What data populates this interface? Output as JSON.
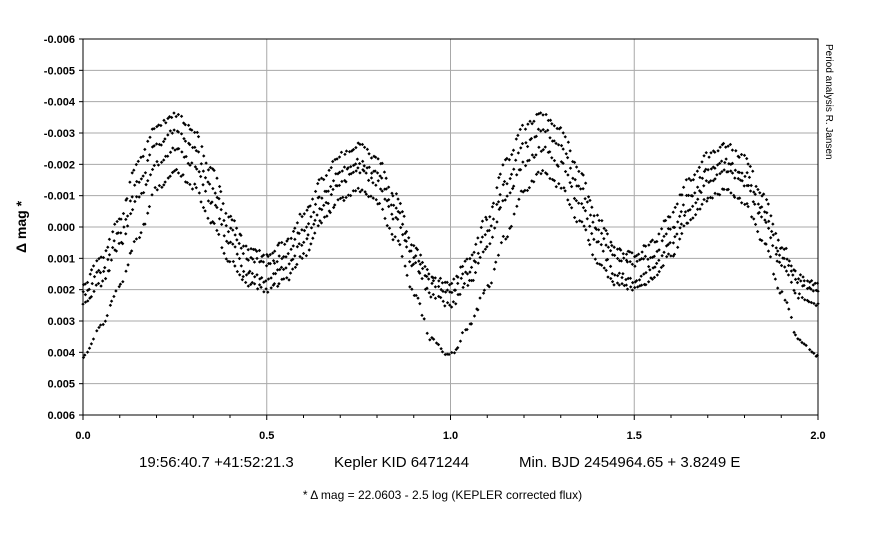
{
  "chart_data": {
    "type": "scatter",
    "title": "",
    "ylabel": "Δ mag *",
    "xlabel": "",
    "xlim": [
      0.0,
      2.0
    ],
    "ylim": [
      -0.006,
      0.006
    ],
    "y_inverted": true,
    "grid": true,
    "legend": "none",
    "x_ticks": [
      "0.0",
      "0.5",
      "1.0",
      "1.5",
      "2.0"
    ],
    "x_tick_values": [
      0.0,
      0.5,
      1.0,
      1.5,
      2.0
    ],
    "y_ticks": [
      "-0.006",
      "-0.005",
      "-0.004",
      "-0.003",
      "-0.002",
      "-0.001",
      "0.000",
      "0.001",
      "0.002",
      "0.003",
      "0.004",
      "0.005",
      "0.006"
    ],
    "y_tick_values": [
      -0.006,
      -0.005,
      -0.004,
      -0.003,
      -0.002,
      -0.001,
      0.0,
      0.001,
      0.002,
      0.003,
      0.004,
      0.005,
      0.006
    ],
    "side_note": "Period analysis  R. Jansen",
    "caption_coords": "19:56:40.7 +41:52:21.3",
    "caption_id": "Kepler KID 6471244",
    "caption_ephemeris": "Min. BJD 2454964.65 + 3.8249 E",
    "footnote": "* Δ mag = 22.0603 - 2.5 log (KEPLER corrected flux)",
    "marker_color": "#000000",
    "series": [
      {
        "phase": [
          0.0,
          0.05,
          0.1,
          0.15,
          0.2,
          0.25,
          0.3,
          0.35,
          0.4,
          0.45,
          0.5,
          0.55,
          0.6,
          0.65,
          0.7,
          0.75,
          0.8,
          0.85,
          0.9,
          0.95,
          1.0
        ],
        "dmag": [
          0.0021,
          0.0014,
          0.0002,
          -0.0014,
          -0.0026,
          -0.0031,
          -0.0026,
          -0.0013,
          0.0001,
          0.001,
          0.0012,
          0.0009,
          0.0001,
          -0.001,
          -0.0018,
          -0.0021,
          -0.0017,
          -0.0006,
          0.0009,
          0.0018,
          0.0021
        ]
      },
      {
        "phase": [
          0.0,
          0.05,
          0.1,
          0.15,
          0.2,
          0.25,
          0.3,
          0.35,
          0.4,
          0.45,
          0.5,
          0.55,
          0.6,
          0.65,
          0.7,
          0.75,
          0.8,
          0.85,
          0.9,
          0.95,
          1.0
        ],
        "dmag": [
          0.0018,
          0.001,
          -0.0003,
          -0.0021,
          -0.0032,
          -0.0036,
          -0.0031,
          -0.0018,
          -0.0003,
          0.0007,
          0.0009,
          0.0005,
          -0.0004,
          -0.0015,
          -0.0023,
          -0.0026,
          -0.0022,
          -0.001,
          0.0006,
          0.0016,
          0.0018
        ]
      },
      {
        "phase": [
          0.0,
          0.05,
          0.1,
          0.15,
          0.2,
          0.25,
          0.3,
          0.35,
          0.4,
          0.45,
          0.5,
          0.55,
          0.6,
          0.65,
          0.7,
          0.75,
          0.8,
          0.85,
          0.9,
          0.95,
          1.0
        ],
        "dmag": [
          0.0025,
          0.0018,
          0.0006,
          -0.0009,
          -0.002,
          -0.0025,
          -0.002,
          -0.0008,
          0.0005,
          0.0015,
          0.0017,
          0.0013,
          0.0005,
          -0.0006,
          -0.0014,
          -0.0018,
          -0.0014,
          -0.0003,
          0.0012,
          0.0022,
          0.0025
        ]
      },
      {
        "phase": [
          0.0,
          0.05,
          0.1,
          0.15,
          0.2,
          0.25,
          0.3,
          0.35,
          0.4,
          0.45,
          0.5,
          0.55,
          0.6,
          0.65,
          0.7,
          0.75,
          0.8,
          0.85,
          0.9,
          0.95,
          1.0
        ],
        "dmag": [
          0.0041,
          0.0032,
          0.0019,
          0.0003,
          -0.0012,
          -0.0018,
          -0.0013,
          -0.0002,
          0.0011,
          0.0018,
          0.002,
          0.0017,
          0.0009,
          -0.0002,
          -0.0009,
          -0.0012,
          -0.0008,
          0.0004,
          0.0021,
          0.0036,
          0.0041
        ]
      }
    ]
  }
}
